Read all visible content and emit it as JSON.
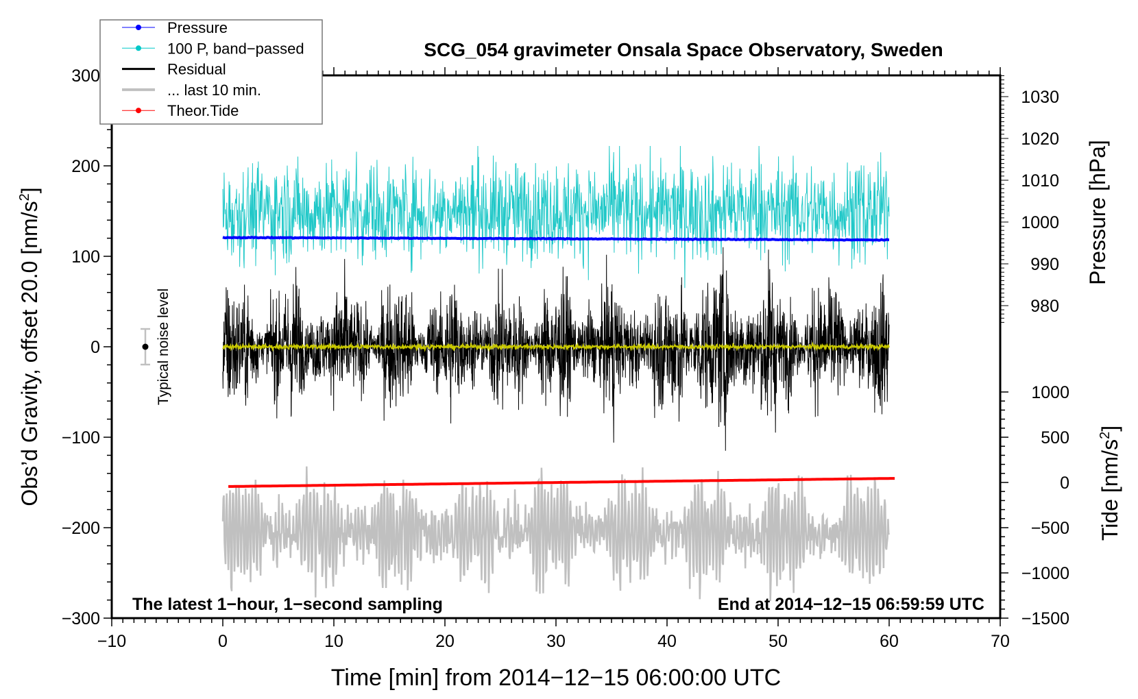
{
  "chart_data": {
    "type": "line",
    "title": "SCG_054 gravimeter Onsala Space Observatory, Sweden",
    "xlabel": "Time [min] from 2014−12−15 06:00:00 UTC",
    "ylabel_left": "Obs’d Gravity, offset 20.0 [nm/s",
    "ylabel_left_sup": "2",
    "ylabel_left_end": "]",
    "ylabel_right_pressure": "Pressure [hPa]",
    "ylabel_right_tide": "Tide [nm/s",
    "ylabel_right_tide_sup": "2",
    "ylabel_right_tide_end": "]",
    "xlim": [
      -10,
      70
    ],
    "ylim_left": [
      -300,
      300
    ],
    "pressure_axis_range": [
      976,
      1035
    ],
    "tide_axis_range": [
      -1500,
      1000
    ],
    "x_ticks": [
      "−10",
      "0",
      "10",
      "20",
      "30",
      "40",
      "50",
      "60",
      "70"
    ],
    "y_ticks_left": [
      "−300",
      "−200",
      "−100",
      "0",
      "100",
      "200",
      "300"
    ],
    "y_ticks_pressure": [
      "980",
      "990",
      "1000",
      "1010",
      "1020",
      "1030"
    ],
    "y_ticks_tide": [
      "−1500",
      "−1000",
      "−500",
      "0",
      "500",
      "1000"
    ],
    "legend": {
      "placement": "top-left",
      "entries": [
        {
          "label": "Pressure",
          "color": "#0000ff",
          "marker": true
        },
        {
          "label": "100 P, band−passed",
          "color": "#00c8c8",
          "marker": true
        },
        {
          "label": "Residual",
          "color": "#000000",
          "marker": false
        },
        {
          "label": "... last 10 min.",
          "color": "#c0c0c0",
          "marker": false
        },
        {
          "label": "Theor.Tide",
          "color": "#ff0000",
          "marker": true
        }
      ]
    },
    "annotations": {
      "bottom_left": "The latest 1−hour, 1−second sampling",
      "bottom_right": "End at 2014−12−15 06:59:59 UTC",
      "noise_label": "Typical noise level",
      "noise_level": {
        "x": -7,
        "y": 0,
        "error": 20
      }
    },
    "series": [
      {
        "name": "Pressure",
        "axis": "pressure",
        "x_range": [
          0,
          60
        ],
        "start": 996.3,
        "end": 995.7,
        "color": "#0000ff"
      },
      {
        "name": "100 P, band-passed",
        "axis": "left",
        "x_range": [
          0,
          60
        ],
        "mean": 150,
        "spread": 30,
        "max": 222,
        "min": 65,
        "color": "#20c8c8"
      },
      {
        "name": "Residual",
        "axis": "left",
        "x_range": [
          0,
          60
        ],
        "mean": 0,
        "spread": 45,
        "max": 110,
        "min": -115,
        "color": "#000000"
      },
      {
        "name": "Residual smoothed",
        "axis": "left",
        "x_range": [
          0,
          60
        ],
        "mean": 0,
        "spread": 2,
        "color": "#c8c800"
      },
      {
        "name": "... last 10 min.",
        "axis": "left",
        "x_range": [
          0,
          60
        ],
        "mean": -205,
        "spread": 50,
        "max": -95,
        "min": -300,
        "period_min": 0.3,
        "color": "#c0c0c0"
      },
      {
        "name": "Theor.Tide",
        "axis": "tide",
        "x_range": [
          0.5,
          60.5
        ],
        "start": -45,
        "end": 45,
        "color": "#ff0000"
      }
    ]
  }
}
